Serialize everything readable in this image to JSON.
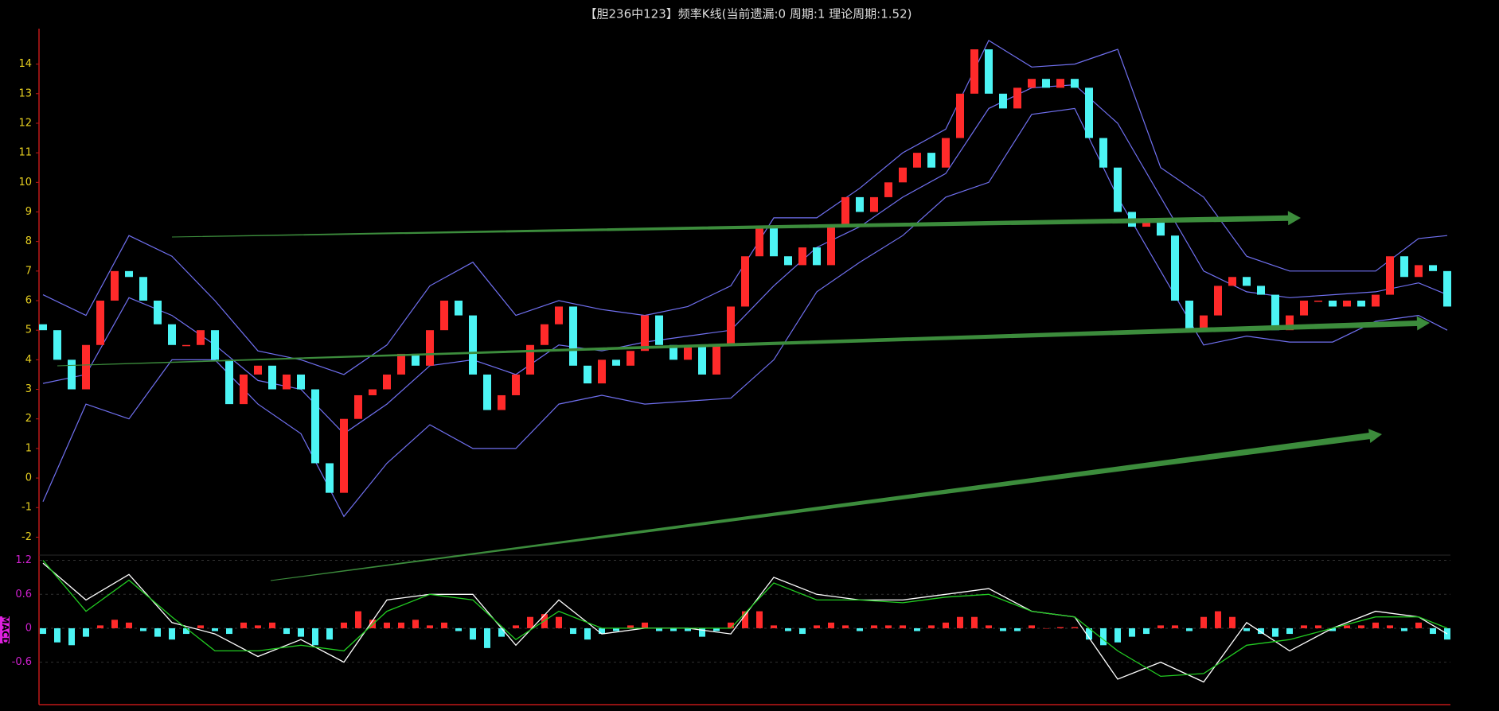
{
  "chart_data": {
    "type": "candlestick",
    "title": "【胆236中123】频率K线(当前遗漏:0 周期:1 理论周期:1.52)",
    "up_color": "#ff2a2a",
    "down_color": "#4cf4f4",
    "ylim": [
      -2.5,
      15.2
    ],
    "yticks": [
      14,
      13,
      12,
      11,
      10,
      9,
      8,
      7,
      6,
      5,
      4,
      3,
      2,
      1,
      0,
      -1,
      -2
    ],
    "open": [
      5.2,
      5,
      4,
      3,
      4.5,
      6,
      7,
      6.8,
      6,
      5.2,
      4.5,
      4.5,
      5,
      4,
      2.5,
      3.5,
      3.8,
      3,
      3.5,
      3,
      0.5,
      -0.5,
      2,
      2.8,
      3,
      3.5,
      4.2,
      3.8,
      5,
      6,
      5.5,
      3.5,
      2.3,
      2.8,
      3.5,
      4.5,
      5.2,
      5.8,
      3.8,
      3.2,
      4,
      3.8,
      4.3,
      5.5,
      4.5,
      4,
      4.5,
      3.5,
      4.5,
      5.8,
      7.5,
      8.5,
      7.5,
      7.2,
      7.8,
      7.2,
      8.5,
      9.5,
      9,
      9.5,
      10,
      10.5,
      11,
      10.5,
      11.5,
      13,
      14.5,
      13,
      12.5,
      13.2,
      13.5,
      13.2,
      13.5,
      13.2,
      11.5,
      10.5,
      9,
      8.5,
      8.7,
      8.2,
      6,
      5,
      5.5,
      6.5,
      6.8,
      6.5,
      6.2,
      5,
      5.5,
      6,
      6,
      5.8,
      6,
      5.8,
      6.2,
      7.5,
      6.8,
      7.2,
      7
    ],
    "close": [
      5,
      4,
      3,
      4.5,
      6,
      7,
      6.8,
      6,
      5.2,
      4.5,
      4.5,
      5,
      4,
      2.5,
      3.5,
      3.8,
      3,
      3.5,
      3,
      0.5,
      -0.5,
      2,
      2.8,
      3,
      3.5,
      4.2,
      3.8,
      5,
      6,
      5.5,
      3.5,
      2.3,
      2.8,
      3.5,
      4.5,
      5.2,
      5.8,
      3.8,
      3.2,
      4,
      3.8,
      4.3,
      5.5,
      4.5,
      4,
      4.5,
      3.5,
      4.5,
      5.8,
      7.5,
      8.5,
      7.5,
      7.2,
      7.8,
      7.2,
      8.5,
      9.5,
      9,
      9.5,
      10,
      10.5,
      11,
      10.5,
      11.5,
      13,
      14.5,
      13,
      12.5,
      13.2,
      13.5,
      13.2,
      13.5,
      13.2,
      11.5,
      10.5,
      9,
      8.5,
      8.7,
      8.2,
      6,
      5,
      5.5,
      6.5,
      6.8,
      6.5,
      6.2,
      5,
      5.5,
      6,
      6,
      5.8,
      6,
      5.8,
      6.2,
      7.5,
      6.8,
      7.2,
      7,
      5.8
    ],
    "bands": {
      "color": "#7070f0",
      "x": [
        0,
        3,
        6,
        9,
        12,
        15,
        18,
        21,
        24,
        27,
        30,
        33,
        36,
        39,
        42,
        45,
        48,
        51,
        54,
        57,
        60,
        63,
        66,
        69,
        72,
        75,
        78,
        81,
        84,
        87,
        90,
        93,
        96,
        98
      ],
      "upper": [
        6.2,
        5.5,
        8.2,
        7.5,
        6,
        4.3,
        4,
        3.5,
        4.5,
        6.5,
        7.3,
        5.5,
        6,
        5.7,
        5.5,
        5.8,
        6.5,
        8.8,
        8.8,
        9.8,
        11,
        11.8,
        14.8,
        13.9,
        14,
        14.5,
        10.5,
        9.5,
        7.5,
        7,
        7,
        7,
        8.1,
        8.2
      ],
      "middle": [
        3.2,
        3.5,
        6.1,
        5.5,
        4.5,
        3.3,
        3,
        1.5,
        2.5,
        3.8,
        4,
        3.5,
        4.5,
        4.3,
        4.6,
        4.8,
        5,
        6.5,
        7.8,
        8.5,
        9.5,
        10.3,
        12.5,
        13.2,
        13.3,
        12,
        9.5,
        7,
        6.3,
        6.1,
        6.2,
        6.3,
        6.6,
        6.2
      ],
      "lower": [
        -0.8,
        2.5,
        2,
        4,
        4,
        2.5,
        1.5,
        -1.3,
        0.5,
        1.8,
        1,
        1,
        2.5,
        2.8,
        2.5,
        2.6,
        2.7,
        4,
        6.3,
        7.3,
        8.2,
        9.5,
        10,
        12.3,
        12.5,
        9.5,
        7,
        4.5,
        4.8,
        4.6,
        4.6,
        5.3,
        5.5,
        5
      ]
    },
    "macd": {
      "label": "MACD",
      "ylim": [
        -1.35,
        1.25
      ],
      "yticks": [
        1.2,
        0.6,
        0,
        -0.6
      ],
      "grid": true,
      "x": [
        0,
        3,
        6,
        9,
        12,
        15,
        18,
        21,
        24,
        27,
        30,
        33,
        36,
        39,
        42,
        45,
        48,
        51,
        54,
        57,
        60,
        63,
        66,
        69,
        72,
        75,
        78,
        81,
        84,
        87,
        90,
        93,
        96,
        98
      ],
      "dif": {
        "color": "#ffffff",
        "values": [
          1.15,
          0.5,
          0.95,
          0.1,
          -0.1,
          -0.5,
          -0.2,
          -0.6,
          0.5,
          0.6,
          0.6,
          -0.3,
          0.5,
          -0.1,
          0,
          0,
          -0.1,
          0.9,
          0.6,
          0.5,
          0.5,
          0.6,
          0.7,
          0.3,
          0.2,
          -0.9,
          -0.6,
          -0.95,
          0.1,
          -0.4,
          0,
          0.3,
          0.2,
          -0.1
        ]
      },
      "dea": {
        "color": "#22cc22",
        "values": [
          1.2,
          0.3,
          0.85,
          0.2,
          -0.4,
          -0.4,
          -0.3,
          -0.4,
          0.3,
          0.6,
          0.5,
          -0.2,
          0.3,
          0,
          0,
          0,
          0,
          0.8,
          0.5,
          0.5,
          0.45,
          0.55,
          0.6,
          0.3,
          0.2,
          -0.4,
          -0.85,
          -0.8,
          -0.3,
          -0.2,
          0,
          0.2,
          0.2,
          0
        ]
      },
      "hist": {
        "pos_color": "#ff2a2a",
        "neg_color": "#4cf4f4",
        "values": [
          -0.1,
          -0.25,
          -0.3,
          -0.15,
          0.05,
          0.15,
          0.1,
          -0.05,
          -0.15,
          -0.2,
          -0.1,
          0.05,
          -0.05,
          -0.1,
          0.1,
          0.05,
          0.1,
          -0.1,
          -0.15,
          -0.3,
          -0.2,
          0.1,
          0.3,
          0.15,
          0.1,
          0.1,
          0.15,
          0.05,
          0.1,
          -0.05,
          -0.2,
          -0.35,
          -0.15,
          0.05,
          0.2,
          0.25,
          0.2,
          -0.1,
          -0.2,
          -0.1,
          -0.05,
          0.05,
          0.1,
          -0.05,
          -0.05,
          -0.05,
          -0.15,
          -0.05,
          0.1,
          0.3,
          0.3,
          0.05,
          -0.05,
          -0.1,
          0.05,
          0.1,
          0.05,
          -0.05,
          0.05,
          0.05,
          0.05,
          -0.05,
          0.05,
          0.1,
          0.2,
          0.2,
          0.05,
          -0.05,
          -0.05,
          0.05,
          0,
          0.02,
          0.02,
          -0.2,
          -0.3,
          -0.25,
          -0.15,
          -0.1,
          0.05,
          0.05,
          -0.05,
          0.2,
          0.3,
          0.2,
          -0.05,
          -0.1,
          -0.15,
          -0.1,
          0.05,
          0.05,
          -0.05,
          0.05,
          0.05,
          0.1,
          0.05,
          -0.05,
          0.1,
          -0.1,
          -0.2
        ]
      }
    }
  }
}
